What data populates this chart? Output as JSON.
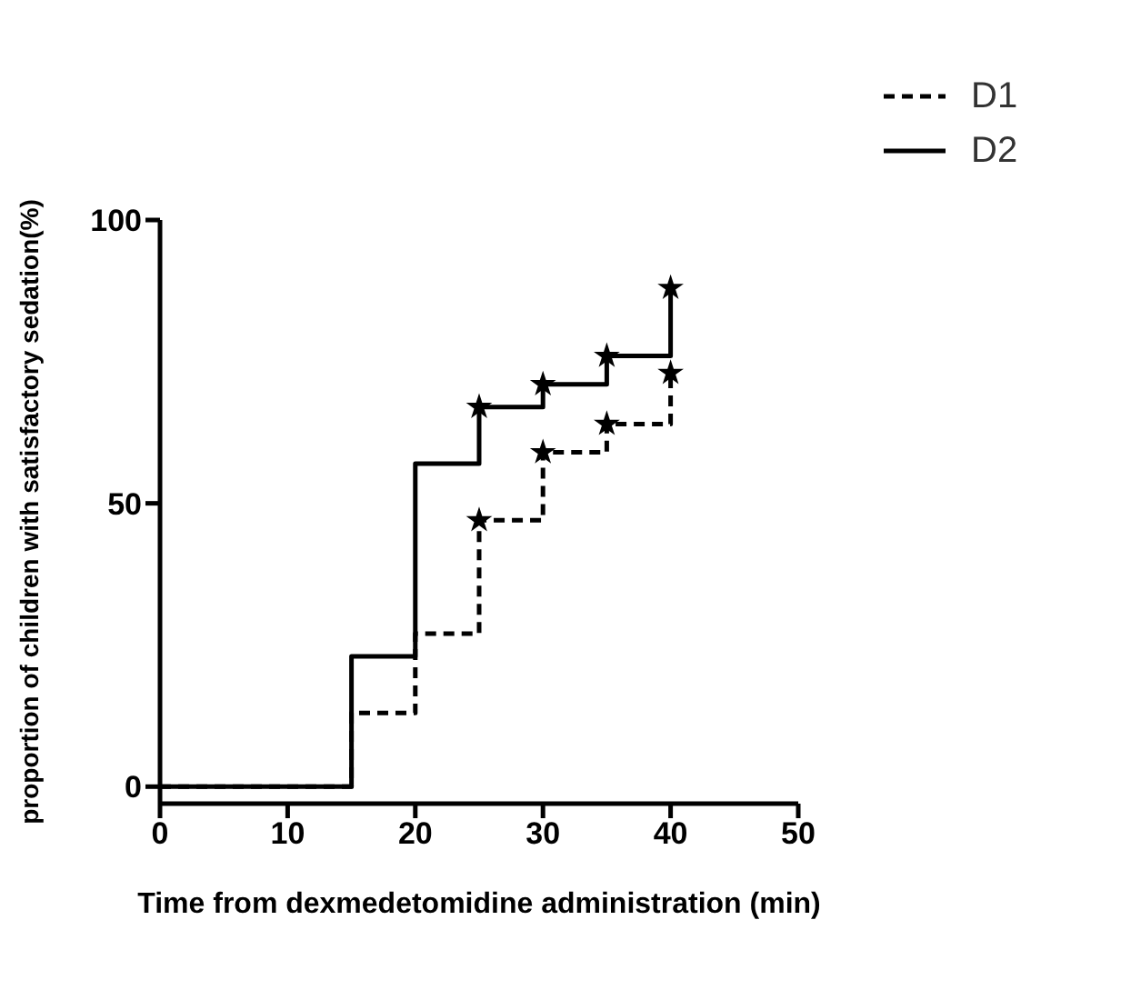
{
  "chart_data": {
    "type": "step",
    "xlabel": "Time from dexmedetomidine administration (min)",
    "ylabel": "proportion of children with satisfactory sedation(%)",
    "xlim": [
      0,
      50
    ],
    "xticks": [
      0,
      10,
      20,
      30,
      40,
      50
    ],
    "ylim": [
      -3,
      100
    ],
    "yticks": [
      0,
      50,
      100
    ],
    "grid": false,
    "legend": "top right",
    "marker": "none",
    "series": [
      {
        "name": "D1",
        "color": "#000000",
        "line_style": "dashed",
        "x": [
          0,
          15,
          20,
          25,
          30,
          35,
          40
        ],
        "values": [
          0,
          13,
          27,
          47,
          59,
          64,
          73
        ]
      },
      {
        "name": "D2",
        "color": "#000000",
        "line_style": "solid",
        "x": [
          0,
          15,
          20,
          25,
          30,
          35,
          40
        ],
        "values": [
          0,
          23,
          57,
          67,
          71,
          76,
          88
        ]
      },
      {
        "type": "scatter",
        "marker": "star",
        "color": "#000000",
        "x": [
          25,
          30,
          35,
          40
        ],
        "values": [
          47,
          59,
          64,
          73
        ]
      },
      {
        "type": "scatter",
        "marker": "star",
        "color": "#000000",
        "x": [
          25,
          30,
          35,
          40
        ],
        "values": [
          67,
          71,
          76,
          88
        ]
      }
    ]
  }
}
